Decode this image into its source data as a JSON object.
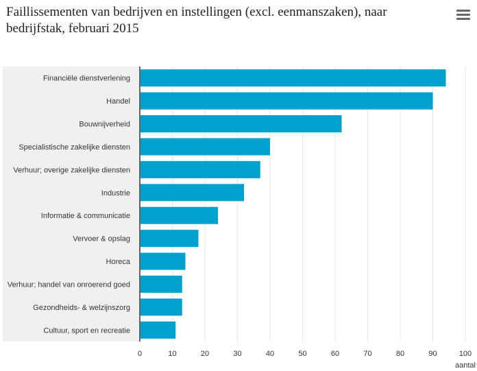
{
  "header": {
    "title_line1": "Faillissementen van bedrijven en instellingen (excl. eenmanszaken), naar",
    "title_line2": "bedrijfstak, februari 2015"
  },
  "menu": {
    "icon": "hamburger-menu-icon"
  },
  "colors": {
    "bar": "#00a1cd",
    "label_band": "#f0f0f0",
    "grid": "#e6e6e6",
    "axis": "#333333"
  },
  "chart_data": {
    "type": "bar",
    "orientation": "horizontal",
    "title": "Faillissementen van bedrijven en instellingen (excl. eenmanszaken), naar bedrijfstak, februari 2015",
    "categories": [
      "Financiële dienstverlening",
      "Handel",
      "Bouwnijverheid",
      "Specialistische zakelijke diensten",
      "Verhuur; overige zakelijke diensten",
      "Industrie",
      "Informatie & communicatie",
      "Vervoer & opslag",
      "Horeca",
      "Verhuur; handel van onroerend goed",
      "Gezondheids- & welzijnszorg",
      "Cultuur, sport en recreatie"
    ],
    "values": [
      94,
      90,
      62,
      40,
      37,
      32,
      24,
      18,
      14,
      13,
      13,
      11
    ],
    "xlabel": "aantal",
    "xlim": [
      0,
      100
    ],
    "xticks": [
      "0",
      "10",
      "20",
      "30",
      "40",
      "50",
      "60",
      "70",
      "80",
      "90",
      "100"
    ],
    "grid": true
  }
}
